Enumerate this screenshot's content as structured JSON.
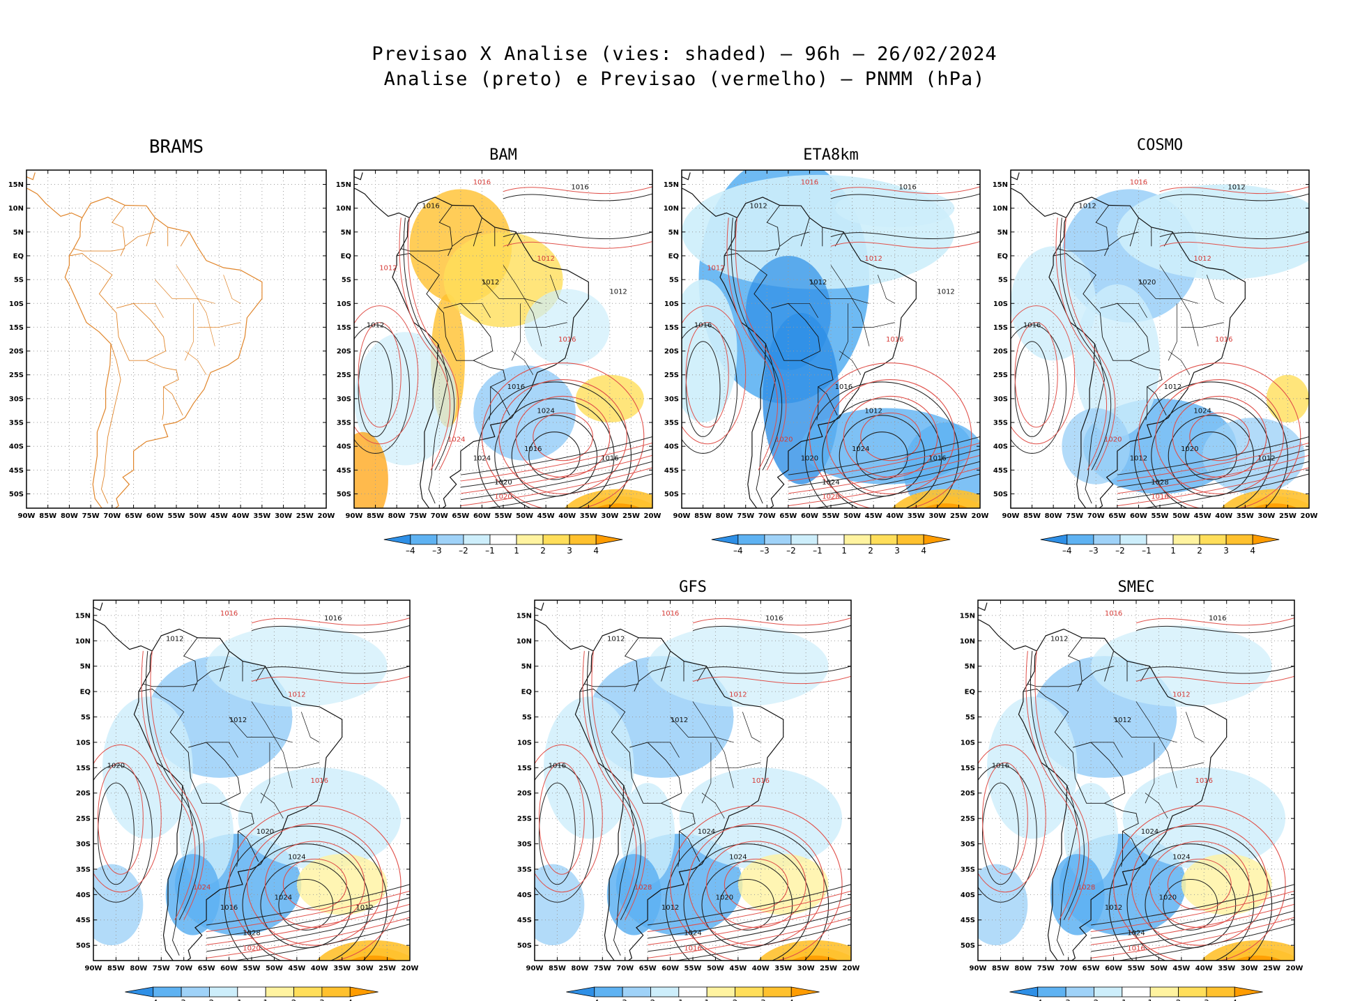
{
  "title_line1": "Previsao X Analise (vies: shaded) – 96h – 26/02/2024",
  "title_line2": "Analise (preto) e Previsao (vermelho) – PNMM (hPa)",
  "lat_ticks": [
    "15N",
    "10N",
    "5N",
    "EQ",
    "5S",
    "10S",
    "15S",
    "20S",
    "25S",
    "30S",
    "35S",
    "40S",
    "45S",
    "50S"
  ],
  "lon_ticks": [
    "90W",
    "85W",
    "80W",
    "75W",
    "70W",
    "65W",
    "60W",
    "55W",
    "50W",
    "45W",
    "40W",
    "35W",
    "30W",
    "25W",
    "20W"
  ],
  "colorbar": {
    "labels": [
      "–4",
      "–3",
      "–2",
      "–1",
      "1",
      "2",
      "3",
      "4"
    ],
    "colors": [
      "#2e8fe6",
      "#5eb2f2",
      "#9fd2f8",
      "#cdeefb",
      "#ffffff",
      "#fff3a0",
      "#ffde5a",
      "#ffc12e",
      "#ff9c00"
    ]
  },
  "panels": [
    {
      "name": "BRAMS",
      "label": "BRAMS",
      "colorbar": false
    },
    {
      "name": "BAM",
      "label": "BAM",
      "colorbar": true
    },
    {
      "name": "ETA8km",
      "label": "ETA8km",
      "colorbar": true
    },
    {
      "name": "COSMO",
      "label": "COSMO",
      "colorbar": true
    },
    {
      "name": "unlabeled",
      "label": "",
      "colorbar": true
    },
    {
      "name": "GFS",
      "label": "GFS",
      "colorbar": true
    },
    {
      "name": "SMEC",
      "label": "SMEC",
      "colorbar": true
    }
  ],
  "chart_data": {
    "type": "heatmap",
    "title": "Previsao X Analise (vies: shaded) – 96h – 26/02/2024",
    "subtitle": "Analise (preto) e Previsao (vermelho) – PNMM (hPa)",
    "variable": "PNMM bias (hPa)",
    "xlim": [
      -90,
      -20
    ],
    "ylim": [
      -53,
      18
    ],
    "contour_levels": [
      1012,
      1016,
      1020,
      1024,
      1028
    ],
    "colorbar_levels": [
      -4,
      -3,
      -2,
      -1,
      1,
      2,
      3,
      4
    ],
    "contour_labels": {
      "BAM": [
        "1016",
        "1016",
        "1016",
        "1012",
        "1012",
        "1012",
        "1016",
        "1016",
        "1024",
        "1024",
        "1020",
        "1016",
        "1020",
        "1024",
        "1016",
        "1012",
        "1012"
      ],
      "ETA8km": [
        "1016",
        "1016",
        "1012",
        "1012",
        "1012",
        "1016",
        "1016",
        "1016",
        "1012",
        "1020",
        "1024",
        "1024",
        "1028",
        "1020",
        "1016",
        "1012",
        "1012"
      ],
      "COSMO": [
        "1016",
        "1012",
        "1012",
        "1012",
        "1020",
        "1016",
        "1016",
        "1012",
        "1024",
        "1020",
        "1028",
        "1020",
        "1016",
        "1012",
        "1012"
      ],
      "unlabeled": [
        "1016",
        "1016",
        "1012",
        "1012",
        "1012",
        "1020",
        "1016",
        "1020",
        "1024",
        "1024",
        "1028",
        "1024",
        "1020",
        "1016",
        "1012"
      ],
      "GFS": [
        "1016",
        "1016",
        "1012",
        "1012",
        "1012",
        "1016",
        "1016",
        "1024",
        "1024",
        "1028",
        "1024",
        "1020",
        "1016",
        "1012"
      ],
      "SMEC": [
        "1016",
        "1016",
        "1012",
        "1012",
        "1012",
        "1016",
        "1016",
        "1024",
        "1024",
        "1028",
        "1024",
        "1020",
        "1016",
        "1012"
      ]
    }
  }
}
